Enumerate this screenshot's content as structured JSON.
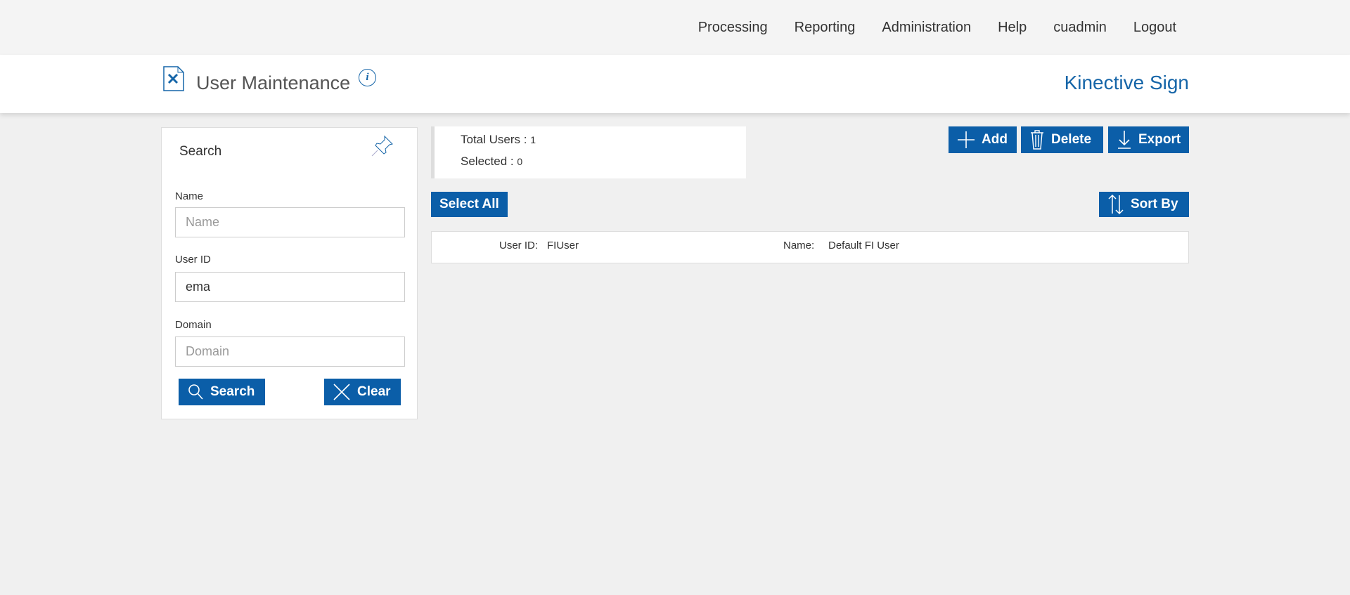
{
  "nav": {
    "items": [
      "Processing",
      "Reporting",
      "Administration",
      "Help",
      "cuadmin",
      "Logout"
    ]
  },
  "header": {
    "title": "User Maintenance",
    "info_icon": "i",
    "brand": "Kinective Sign"
  },
  "search": {
    "title": "Search",
    "name_label": "Name",
    "name_placeholder": "Name",
    "name_value": "",
    "userid_label": "User ID",
    "userid_value": "ema",
    "domain_label": "Domain",
    "domain_placeholder": "Domain",
    "domain_value": "",
    "search_button": "Search",
    "clear_button": "Clear"
  },
  "stats": {
    "total_label": "Total Users :",
    "total_value": "1",
    "selected_label": "Selected :",
    "selected_value": "0"
  },
  "toolbar": {
    "add": "Add",
    "delete": "Delete",
    "export": "Export",
    "select_all": "Select All",
    "sort_by": "Sort By"
  },
  "results": [
    {
      "userid_label": "User ID:",
      "userid": "FIUser",
      "name_label": "Name:",
      "name": "Default FI User"
    }
  ],
  "colors": {
    "accent": "#0b5ea8",
    "brand": "#1565a8",
    "background": "#f0f0f0"
  }
}
